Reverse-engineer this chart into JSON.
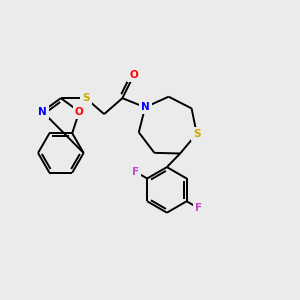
{
  "background_color": "#EBEBEB",
  "bond_color": "#000000",
  "atom_colors": {
    "O": "#FF0000",
    "N": "#0000FF",
    "S": "#CCAA00",
    "F": "#CC44CC",
    "C": "#000000"
  },
  "figsize": [
    3.0,
    3.0
  ],
  "dpi": 100,
  "lw": 1.4,
  "doff": 2.8
}
